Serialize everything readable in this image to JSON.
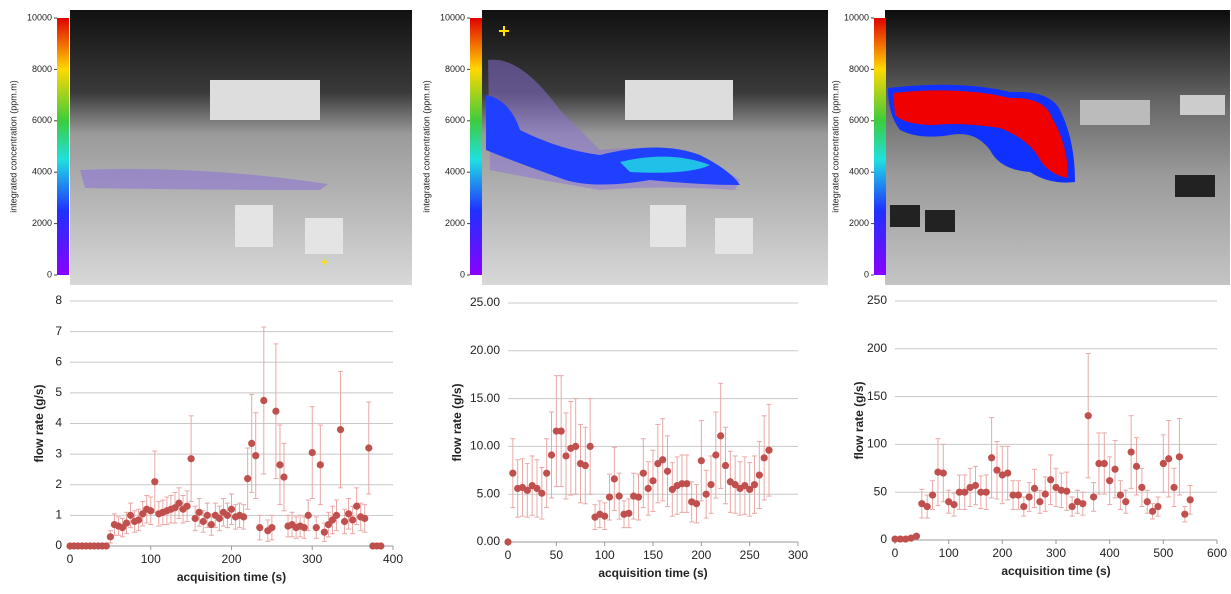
{
  "images": [
    {
      "colorbar_label": "integrated concentration (ppm.m)",
      "colorbar_lim": [
        0,
        10000
      ],
      "colorbar_ticks": [
        0,
        2000,
        4000,
        6000,
        8000,
        10000
      ]
    },
    {
      "colorbar_label": "integrated concentration (ppm.m)",
      "colorbar_lim": [
        0,
        10000
      ],
      "colorbar_ticks": [
        0,
        2000,
        4000,
        6000,
        8000,
        10000
      ]
    },
    {
      "colorbar_label": "integrated concentration (ppm.m)",
      "colorbar_lim": [
        0,
        10000
      ],
      "colorbar_ticks": [
        0,
        2000,
        4000,
        6000,
        8000,
        10000
      ]
    }
  ],
  "chart_data": [
    {
      "type": "scatter",
      "x_label": "acquisition time (s)",
      "y_label": "flow rate (g/s)",
      "xlim": [
        0,
        400
      ],
      "xticks": [
        0,
        100,
        200,
        300,
        400
      ],
      "ylim": [
        0,
        8
      ],
      "yticks": [
        0,
        1,
        2,
        3,
        4,
        5,
        6,
        7,
        8
      ],
      "grid": true,
      "x": [
        0,
        5,
        10,
        15,
        20,
        25,
        30,
        35,
        40,
        45,
        50,
        55,
        60,
        65,
        70,
        75,
        80,
        85,
        90,
        95,
        100,
        105,
        110,
        115,
        120,
        125,
        130,
        135,
        140,
        145,
        150,
        155,
        160,
        165,
        170,
        175,
        180,
        185,
        190,
        195,
        200,
        205,
        210,
        215,
        220,
        225,
        230,
        235,
        240,
        245,
        250,
        255,
        260,
        265,
        270,
        275,
        280,
        285,
        290,
        295,
        300,
        305,
        310,
        315,
        320,
        325,
        330,
        335,
        340,
        345,
        350,
        355,
        360,
        365,
        370,
        375,
        380,
        385
      ],
      "series": [
        {
          "color": "#c0504d",
          "error_color": "#e8a9a7",
          "values": [
            0,
            0,
            0,
            0,
            0,
            0,
            0,
            0,
            0,
            0,
            0.3,
            0.7,
            0.65,
            0.6,
            0.75,
            1.0,
            0.8,
            0.85,
            1.05,
            1.2,
            1.15,
            2.1,
            1.05,
            1.1,
            1.15,
            1.2,
            1.25,
            1.4,
            1.2,
            1.3,
            2.85,
            0.9,
            1.1,
            0.8,
            1.0,
            0.7,
            1.0,
            0.9,
            1.1,
            1.0,
            1.2,
            0.95,
            1.0,
            0.95,
            2.2,
            3.35,
            2.95,
            0.6,
            4.75,
            0.5,
            0.6,
            4.4,
            2.65,
            2.25,
            0.65,
            0.7,
            0.6,
            0.65,
            0.6,
            1.0,
            3.05,
            0.6,
            2.65,
            0.45,
            0.7,
            0.85,
            1.0,
            3.8,
            0.8,
            1.05,
            0.85,
            1.3,
            0.95,
            0.9,
            3.2,
            0,
            0,
            0
          ],
          "errors": [
            0,
            0,
            0,
            0,
            0,
            0,
            0,
            0,
            0,
            0,
            0.2,
            0.35,
            0.3,
            0.3,
            0.35,
            0.4,
            0.35,
            0.35,
            0.4,
            0.45,
            0.45,
            1.0,
            0.4,
            0.4,
            0.45,
            0.45,
            0.5,
            0.5,
            0.45,
            0.5,
            1.4,
            0.4,
            0.45,
            0.35,
            0.4,
            0.35,
            0.4,
            0.4,
            0.45,
            0.4,
            0.5,
            0.4,
            0.4,
            0.4,
            1.0,
            1.6,
            1.4,
            0.4,
            2.4,
            0.35,
            0.4,
            2.2,
            1.3,
            1.1,
            0.35,
            0.4,
            0.35,
            0.35,
            0.35,
            0.5,
            1.5,
            0.35,
            1.3,
            0.3,
            0.4,
            0.45,
            0.5,
            1.9,
            0.4,
            0.5,
            0.45,
            0.6,
            0.45,
            0.45,
            1.5,
            0,
            0,
            0
          ]
        }
      ]
    },
    {
      "type": "scatter",
      "x_label": "acquisition time (s)",
      "y_label": "flow rate (g/s)",
      "xlim": [
        0,
        300
      ],
      "xticks": [
        0,
        50,
        100,
        150,
        200,
        250,
        300
      ],
      "ylim": [
        0,
        25
      ],
      "yticks": [
        {
          "value": 0,
          "label": "0.00"
        },
        {
          "value": 5,
          "label": "5.00"
        },
        {
          "value": 10,
          "label": "10.00"
        },
        {
          "value": 15,
          "label": "15.00"
        },
        {
          "value": 20,
          "label": "20.00"
        },
        {
          "value": 25,
          "label": "25.00"
        }
      ],
      "grid": true,
      "x": [
        0,
        5,
        10,
        15,
        20,
        25,
        30,
        35,
        40,
        45,
        50,
        55,
        60,
        65,
        70,
        75,
        80,
        85,
        90,
        95,
        100,
        105,
        110,
        115,
        120,
        125,
        130,
        135,
        140,
        145,
        150,
        155,
        160,
        165,
        170,
        175,
        180,
        185,
        190,
        195,
        200,
        205,
        210,
        215,
        220,
        225,
        230,
        235,
        240,
        245,
        250,
        255,
        260,
        265,
        270
      ],
      "series": [
        {
          "color": "#c0504d",
          "error_color": "#e8a9a7",
          "values": [
            0,
            7.2,
            5.6,
            5.7,
            5.4,
            5.9,
            5.6,
            5.1,
            7.2,
            9.1,
            11.6,
            11.6,
            9.0,
            9.8,
            10.0,
            8.2,
            8.0,
            10.0,
            2.6,
            2.9,
            2.7,
            4.7,
            6.6,
            4.8,
            2.9,
            3.0,
            4.8,
            4.7,
            7.2,
            5.6,
            6.4,
            8.2,
            8.6,
            7.4,
            5.5,
            5.9,
            6.1,
            6.1,
            4.2,
            4.0,
            8.5,
            5.0,
            6.0,
            9.1,
            11.1,
            8.0,
            6.3,
            6.0,
            5.6,
            5.9,
            5.5,
            6.0,
            7.0,
            8.8,
            9.6
          ],
          "errors": [
            0,
            3.6,
            3.0,
            3.0,
            2.8,
            3.1,
            3.0,
            2.7,
            3.6,
            4.5,
            5.8,
            5.8,
            4.5,
            4.9,
            5.0,
            4.1,
            4.0,
            5.0,
            1.3,
            1.4,
            1.4,
            2.4,
            3.3,
            2.4,
            1.4,
            1.5,
            2.4,
            2.4,
            3.6,
            2.8,
            3.2,
            4.1,
            4.3,
            3.7,
            2.8,
            3.0,
            3.0,
            3.0,
            2.1,
            2.0,
            4.2,
            2.5,
            3.0,
            4.5,
            5.5,
            4.0,
            3.2,
            3.0,
            2.8,
            3.0,
            2.8,
            3.0,
            3.5,
            4.4,
            4.8
          ]
        }
      ]
    },
    {
      "type": "scatter",
      "x_label": "acquisition time (s)",
      "y_label": "flow rate (g/s)",
      "xlim": [
        0,
        600
      ],
      "xticks": [
        0,
        100,
        200,
        300,
        400,
        500,
        600
      ],
      "ylim": [
        0,
        250
      ],
      "yticks": [
        0,
        50,
        100,
        150,
        200,
        250
      ],
      "grid": true,
      "x": [
        0,
        10,
        20,
        30,
        40,
        50,
        60,
        70,
        80,
        90,
        100,
        110,
        120,
        130,
        140,
        150,
        160,
        170,
        180,
        190,
        200,
        210,
        220,
        230,
        240,
        250,
        260,
        270,
        280,
        290,
        300,
        310,
        320,
        330,
        340,
        350,
        360,
        370,
        380,
        390,
        400,
        410,
        420,
        430,
        440,
        450,
        460,
        470,
        480,
        490,
        500,
        510,
        520,
        530,
        540,
        550
      ],
      "series": [
        {
          "color": "#c0504d",
          "error_color": "#e8a9a7",
          "values": [
            1,
            1,
            1,
            2,
            4,
            38,
            35,
            47,
            71,
            70,
            40,
            37,
            50,
            50,
            55,
            57,
            50,
            50,
            86,
            73,
            68,
            70,
            47,
            47,
            35,
            45,
            54,
            40,
            48,
            63,
            55,
            52,
            51,
            35,
            40,
            38,
            130,
            45,
            80,
            80,
            62,
            74,
            47,
            40,
            92,
            77,
            55,
            40,
            30,
            35,
            80,
            85,
            55,
            87,
            27,
            42
          ],
          "errors": [
            0,
            0,
            0,
            0,
            0,
            15,
            12,
            15,
            35,
            30,
            12,
            12,
            18,
            18,
            20,
            20,
            17,
            18,
            42,
            30,
            30,
            28,
            15,
            15,
            10,
            15,
            20,
            12,
            18,
            26,
            20,
            18,
            20,
            10,
            12,
            12,
            65,
            15,
            32,
            32,
            25,
            30,
            15,
            12,
            38,
            30,
            20,
            12,
            8,
            10,
            30,
            40,
            20,
            40,
            8,
            15
          ]
        }
      ]
    }
  ]
}
